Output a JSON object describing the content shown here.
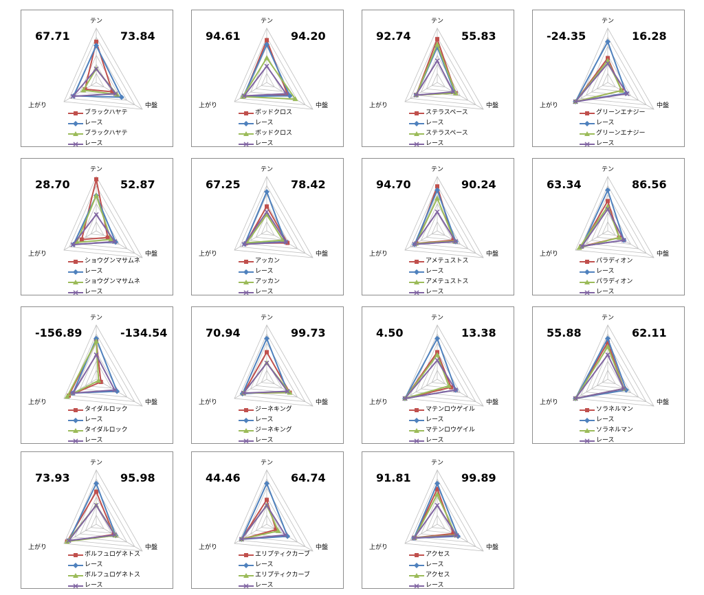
{
  "axis_labels": {
    "top": "テン",
    "right": "中盤",
    "left": "上がり"
  },
  "colors": {
    "s1": "#c0504d",
    "s2": "#4f81bd",
    "s3": "#9bbb59",
    "s4": "#8064a2"
  },
  "chart_data": [
    {
      "type": "radar",
      "left_value": "67.71",
      "right_value": "73.84",
      "legend": [
        "ブラックハヤテ",
        "レース",
        "ブラックハヤテ",
        "レース"
      ],
      "series": [
        {
          "name": "ブラックハヤテ",
          "values": [
            0.75,
            0.35,
            0.35
          ]
        },
        {
          "name": "レース",
          "values": [
            0.68,
            0.55,
            0.7
          ]
        },
        {
          "name": "ブラックハヤテ",
          "values": [
            0.25,
            0.45,
            0.4
          ]
        },
        {
          "name": "レース",
          "values": [
            0.25,
            0.42,
            0.72
          ]
        }
      ]
    },
    {
      "type": "radar",
      "left_value": "94.61",
      "right_value": "94.20",
      "legend": [
        "ボッドクロス",
        "レース",
        "ボッドクロス",
        "レース"
      ],
      "series": [
        {
          "name": "ボッドクロス",
          "values": [
            0.78,
            0.45,
            0.7
          ]
        },
        {
          "name": "レース",
          "values": [
            0.7,
            0.5,
            0.72
          ]
        },
        {
          "name": "ボッドクロス",
          "values": [
            0.45,
            0.62,
            0.74
          ]
        },
        {
          "name": "レース",
          "values": [
            0.3,
            0.42,
            0.7
          ]
        }
      ]
    },
    {
      "type": "radar",
      "left_value": "92.74",
      "right_value": "55.83",
      "legend": [
        "ステラスペース",
        "レース",
        "ステラスペース",
        "レース"
      ],
      "series": [
        {
          "name": "ステラスペース",
          "values": [
            0.8,
            0.4,
            0.65
          ]
        },
        {
          "name": "レース",
          "values": [
            0.65,
            0.38,
            0.65
          ]
        },
        {
          "name": "ステラスペース",
          "values": [
            0.7,
            0.4,
            0.65
          ]
        },
        {
          "name": "レース",
          "values": [
            0.4,
            0.35,
            0.66
          ]
        }
      ]
    },
    {
      "type": "radar",
      "left_value": "-24.35",
      "right_value": "16.28",
      "legend": [
        "グリーンエナジー",
        "レース",
        "グリーンエナジー",
        "レース"
      ],
      "series": [
        {
          "name": "グリーンエナジー",
          "values": [
            0.45,
            0.3,
            1.0
          ]
        },
        {
          "name": "レース",
          "values": [
            0.75,
            0.4,
            1.0
          ]
        },
        {
          "name": "グリーンエナジー",
          "values": [
            0.4,
            0.3,
            1.0
          ]
        },
        {
          "name": "レース",
          "values": [
            0.35,
            0.42,
            1.0
          ]
        }
      ]
    },
    {
      "type": "radar",
      "left_value": "28.70",
      "right_value": "52.87",
      "legend": [
        "ショウグンマサムネ",
        "レース",
        "ショウグンマサムネ",
        "レース"
      ],
      "series": [
        {
          "name": "ショウグンマサムネ",
          "values": [
            0.95,
            0.25,
            0.45
          ]
        },
        {
          "name": "レース",
          "values": [
            0.65,
            0.42,
            0.7
          ]
        },
        {
          "name": "ショウグンマサムネ",
          "values": [
            0.65,
            0.32,
            0.6
          ]
        },
        {
          "name": "レース",
          "values": [
            0.3,
            0.4,
            0.72
          ]
        }
      ]
    },
    {
      "type": "radar",
      "left_value": "67.25",
      "right_value": "78.42",
      "legend": [
        "アッカン",
        "レース",
        "アッカン",
        "レース"
      ],
      "series": [
        {
          "name": "アッカン",
          "values": [
            0.45,
            0.45,
            0.65
          ]
        },
        {
          "name": "レース",
          "values": [
            0.72,
            0.4,
            0.68
          ]
        },
        {
          "name": "アッカン",
          "values": [
            0.3,
            0.35,
            0.62
          ]
        },
        {
          "name": "レース",
          "values": [
            0.35,
            0.42,
            0.7
          ]
        }
      ]
    },
    {
      "type": "radar",
      "left_value": "94.70",
      "right_value": "90.24",
      "legend": [
        "アメテュストス",
        "レース",
        "アメテュストス",
        "レース"
      ],
      "series": [
        {
          "name": "アメテュストス",
          "values": [
            0.82,
            0.35,
            0.65
          ]
        },
        {
          "name": "レース",
          "values": [
            0.75,
            0.4,
            0.7
          ]
        },
        {
          "name": "アメテュストス",
          "values": [
            0.6,
            0.38,
            0.66
          ]
        },
        {
          "name": "レース",
          "values": [
            0.35,
            0.4,
            0.7
          ]
        }
      ]
    },
    {
      "type": "radar",
      "left_value": "63.34",
      "right_value": "86.56",
      "legend": [
        "パラディオン",
        "レース",
        "パラディオン",
        "レース"
      ],
      "series": [
        {
          "name": "パラディオン",
          "values": [
            0.55,
            0.25,
            0.82
          ]
        },
        {
          "name": "レース",
          "values": [
            0.75,
            0.35,
            0.8
          ]
        },
        {
          "name": "パラディオン",
          "values": [
            0.45,
            0.25,
            0.88
          ]
        },
        {
          "name": "レース",
          "values": [
            0.4,
            0.35,
            0.8
          ]
        }
      ]
    },
    {
      "type": "radar",
      "left_value": "-156.89",
      "right_value": "-134.54",
      "legend": [
        "タイダルロック",
        "レース",
        "タイダルロック",
        "レース"
      ],
      "series": [
        {
          "name": "タイダルロック",
          "values": [
            0.7,
            0.1,
            0.85
          ]
        },
        {
          "name": "レース",
          "values": [
            0.75,
            0.45,
            0.72
          ]
        },
        {
          "name": "タイダルロック",
          "values": [
            0.7,
            0.05,
            0.9
          ]
        },
        {
          "name": "レース",
          "values": [
            0.45,
            0.4,
            0.72
          ]
        }
      ]
    },
    {
      "type": "radar",
      "left_value": "70.94",
      "right_value": "99.73",
      "legend": [
        "ジーネキング",
        "レース",
        "ジーネキング",
        "レース"
      ],
      "series": [
        {
          "name": "ジーネキング",
          "values": [
            0.5,
            0.5,
            0.72
          ]
        },
        {
          "name": "レース",
          "values": [
            0.75,
            0.45,
            0.75
          ]
        },
        {
          "name": "ジーネキング",
          "values": [
            0.3,
            0.5,
            0.72
          ]
        },
        {
          "name": "レース",
          "values": [
            0.3,
            0.45,
            0.72
          ]
        }
      ]
    },
    {
      "type": "radar",
      "left_value": "4.50",
      "right_value": "13.38",
      "legend": [
        "マテンロウゲイル",
        "レース",
        "マテンロウゲイル",
        "レース"
      ],
      "series": [
        {
          "name": "マテンロウゲイル",
          "values": [
            0.5,
            0.3,
            1.0
          ]
        },
        {
          "name": "レース",
          "values": [
            0.75,
            0.4,
            1.0
          ]
        },
        {
          "name": "マテンロウゲイル",
          "values": [
            0.45,
            0.25,
            1.0
          ]
        },
        {
          "name": "レース",
          "values": [
            0.35,
            0.4,
            1.0
          ]
        }
      ]
    },
    {
      "type": "radar",
      "left_value": "55.88",
      "right_value": "62.11",
      "legend": [
        "ソラネルマン",
        "レース",
        "ソラネルマン",
        "レース"
      ],
      "series": [
        {
          "name": "ソラネルマン",
          "values": [
            0.68,
            0.35,
            1.0
          ]
        },
        {
          "name": "レース",
          "values": [
            0.75,
            0.4,
            1.0
          ]
        },
        {
          "name": "ソラネルマン",
          "values": [
            0.6,
            0.35,
            1.0
          ]
        },
        {
          "name": "レース",
          "values": [
            0.45,
            0.35,
            1.0
          ]
        }
      ]
    },
    {
      "type": "radar",
      "left_value": "73.93",
      "right_value": "95.98",
      "legend": [
        "ボルフュロゲネトス",
        "レース",
        "ボルフュロゲネトス",
        "レース"
      ],
      "series": [
        {
          "name": "ボルフュロゲネトス",
          "values": [
            0.6,
            0.38,
            0.9
          ]
        },
        {
          "name": "レース",
          "values": [
            0.75,
            0.42,
            0.85
          ]
        },
        {
          "name": "ボルフュロゲネトス",
          "values": [
            0.35,
            0.42,
            0.9
          ]
        },
        {
          "name": "レース",
          "values": [
            0.35,
            0.4,
            0.85
          ]
        }
      ]
    },
    {
      "type": "radar",
      "left_value": "44.46",
      "right_value": "64.74",
      "legend": [
        "エリプティクカーブ",
        "レース",
        "エリプティクカーブ",
        "レース"
      ],
      "series": [
        {
          "name": "エリプティクカーブ",
          "values": [
            0.45,
            0.2,
            0.78
          ]
        },
        {
          "name": "レース",
          "values": [
            0.75,
            0.45,
            0.78
          ]
        },
        {
          "name": "エリプティクカーブ",
          "values": [
            0.35,
            0.25,
            0.78
          ]
        },
        {
          "name": "レース",
          "values": [
            0.35,
            0.4,
            0.78
          ]
        }
      ]
    },
    {
      "type": "radar",
      "left_value": "91.81",
      "right_value": "99.89",
      "legend": [
        "アクセス",
        "レース",
        "アクセス",
        "レース"
      ],
      "series": [
        {
          "name": "アクセス",
          "values": [
            0.65,
            0.35,
            0.7
          ]
        },
        {
          "name": "レース",
          "values": [
            0.75,
            0.45,
            0.72
          ]
        },
        {
          "name": "アクセス",
          "values": [
            0.55,
            0.4,
            0.7
          ]
        },
        {
          "name": "レース",
          "values": [
            0.35,
            0.42,
            0.72
          ]
        }
      ]
    }
  ]
}
